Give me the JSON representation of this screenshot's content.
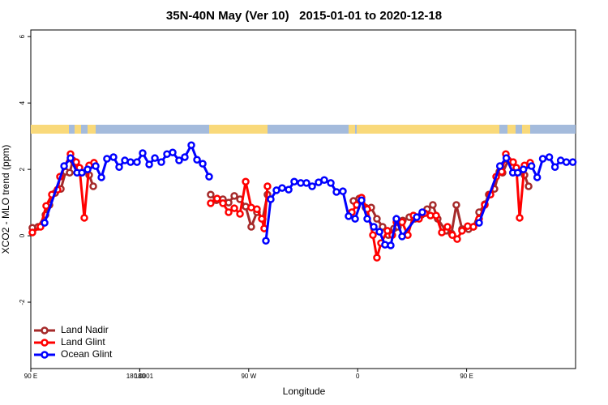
{
  "chart_data": {
    "type": "line",
    "title": "35N-40N May (Ver 10)   2015-01-01 to 2020-12-18",
    "x_label": "Longitude",
    "y_label": "XCO2 - MLO trend (ppm)",
    "xlim": [
      90,
      540
    ],
    "ylim": [
      -4,
      6.2
    ],
    "xticks": [
      {
        "value": 90,
        "label": "90 E"
      },
      180,
      {
        "value": 270,
        "label": "90 W"
      },
      {
        "value": 360,
        "label": "0"
      },
      {
        "value": 450,
        "label": "90 E"
      },
      180.0001
    ],
    "yticks": [
      -2,
      0,
      2,
      4,
      6
    ],
    "legend": "bottom-left",
    "series": [
      {
        "name": "Land Nadir",
        "color": "#a52a2a",
        "x": [
          91.3,
          96.0,
          102.1,
          105.4,
          110.1,
          114.8,
          118.8,
          122.1,
          124.8,
          128.8,
          138.2,
          141.6,
          null,
          238.6,
          243.3,
          248.7,
          253.4,
          258.1,
          262.8,
          267.5,
          272.1,
          276.8,
          281.5,
          285.5,
          null,
          356.5,
          361.2,
          366.5,
          371.2,
          375.9,
          380.6,
          385.3,
          390.0,
          393.3,
          397.3,
          402.7,
          407.4,
          412.7,
          417.4,
          422.1,
          426.1,
          432.8,
          437.5,
          441.5,
          446.2,
          451.6,
          455.6,
          460.3,
          465.0,
          468.3,
          473.0,
          477.0,
          479.7,
          484.4,
          488.4,
          497.8,
          501.2
        ],
        "values": [
          0.24,
          0.27,
          0.63,
          0.93,
          1.29,
          1.41,
          1.93,
          1.9,
          2.27,
          2.07,
          1.83,
          1.49,
          null,
          1.24,
          1.07,
          1.1,
          1.0,
          1.2,
          1.1,
          0.88,
          0.27,
          0.71,
          0.51,
          1.24,
          null,
          1.05,
          1.12,
          0.85,
          0.85,
          0.51,
          0.27,
          0.02,
          0.22,
          0.27,
          0.46,
          0.56,
          0.51,
          0.63,
          0.8,
          0.93,
          0.51,
          0.15,
          0.07,
          0.93,
          0.2,
          0.2,
          0.27,
          0.71,
          0.95,
          1.24,
          1.41,
          1.93,
          1.9,
          2.27,
          2.07,
          1.83,
          1.49
        ]
      },
      {
        "name": "Land Glint",
        "color": "#ff0000",
        "x": [
          91.3,
          98.0,
          102.7,
          107.4,
          112.1,
          114.1,
          122.8,
          127.5,
          130.2,
          134.2,
          138.2,
          142.2,
          null,
          238.6,
          243.9,
          248.7,
          253.4,
          258.1,
          262.8,
          267.5,
          272.1,
          276.8,
          280.8,
          282.8,
          285.5,
          null,
          355.2,
          359.2,
          363.2,
          367.9,
          372.6,
          375.9,
          379.3,
          384.6,
          388.6,
          392.0,
          396.7,
          401.4,
          406.1,
          410.7,
          415.4,
          420.1,
          424.8,
          429.5,
          434.2,
          438.2,
          442.2,
          446.2,
          450.9,
          455.6,
          460.3,
          465.0,
          469.7,
          474.4,
          479.0,
          482.4,
          488.4,
          491.1,
          493.8,
          497.8,
          502.5
        ],
        "values": [
          0.1,
          0.27,
          0.9,
          1.24,
          1.39,
          1.78,
          2.46,
          2.22,
          2.05,
          0.54,
          2.12,
          2.2,
          null,
          0.98,
          1.12,
          0.98,
          0.71,
          0.83,
          0.66,
          1.63,
          0.85,
          0.8,
          0.51,
          0.22,
          1.49,
          null,
          0.71,
          0.93,
          1.15,
          0.8,
          0.02,
          -0.66,
          -0.22,
          0.15,
          0.02,
          0.41,
          0.41,
          0.02,
          0.61,
          0.51,
          0.68,
          0.61,
          0.61,
          0.1,
          0.27,
          0.02,
          -0.1,
          0.15,
          0.29,
          0.27,
          0.51,
          0.93,
          1.24,
          1.78,
          1.93,
          2.46,
          2.22,
          2.05,
          0.54,
          2.12,
          2.2
        ]
      },
      {
        "name": "Ocean Glint",
        "color": "#0000ff",
        "x": [
          101.4,
          117.5,
          122.8,
          128.2,
          132.2,
          136.9,
          143.6,
          148.3,
          152.9,
          158.3,
          163.0,
          167.7,
          172.4,
          177.7,
          182.4,
          187.8,
          192.5,
          197.8,
          202.5,
          207.2,
          212.5,
          217.2,
          222.6,
          227.3,
          232.0,
          237.3,
          null,
          284.2,
          288.2,
          292.9,
          297.6,
          303.0,
          307.6,
          313.0,
          317.7,
          322.4,
          327.7,
          332.4,
          337.8,
          342.5,
          347.8,
          352.5,
          357.9,
          363.2,
          367.9,
          373.3,
          378.0,
          382.6,
          387.3,
          392.0,
          396.7,
          408.8,
          413.4,
          null,
          460.3,
          477.5,
          482.8,
          488.2,
          492.2,
          496.9,
          503.6,
          508.3,
          512.9,
          518.3,
          523.0,
          527.7,
          532.4,
          537.7
        ],
        "values": [
          0.39,
          2.1,
          2.34,
          1.9,
          1.9,
          2.0,
          2.1,
          1.76,
          2.32,
          2.37,
          2.07,
          2.27,
          2.22,
          2.22,
          2.49,
          2.15,
          2.34,
          2.22,
          2.46,
          2.51,
          2.27,
          2.37,
          2.73,
          2.29,
          2.17,
          1.78,
          null,
          -0.15,
          1.1,
          1.37,
          1.44,
          1.39,
          1.63,
          1.59,
          1.59,
          1.49,
          1.61,
          1.68,
          1.59,
          1.32,
          1.34,
          0.59,
          0.51,
          1.07,
          0.51,
          0.27,
          0.12,
          -0.27,
          -0.29,
          0.51,
          -0.02,
          0.56,
          0.71,
          null,
          0.39,
          2.1,
          2.34,
          1.9,
          1.9,
          2.0,
          2.1,
          1.76,
          2.32,
          2.37,
          2.07,
          2.27,
          2.22,
          2.22
        ]
      }
    ]
  }
}
